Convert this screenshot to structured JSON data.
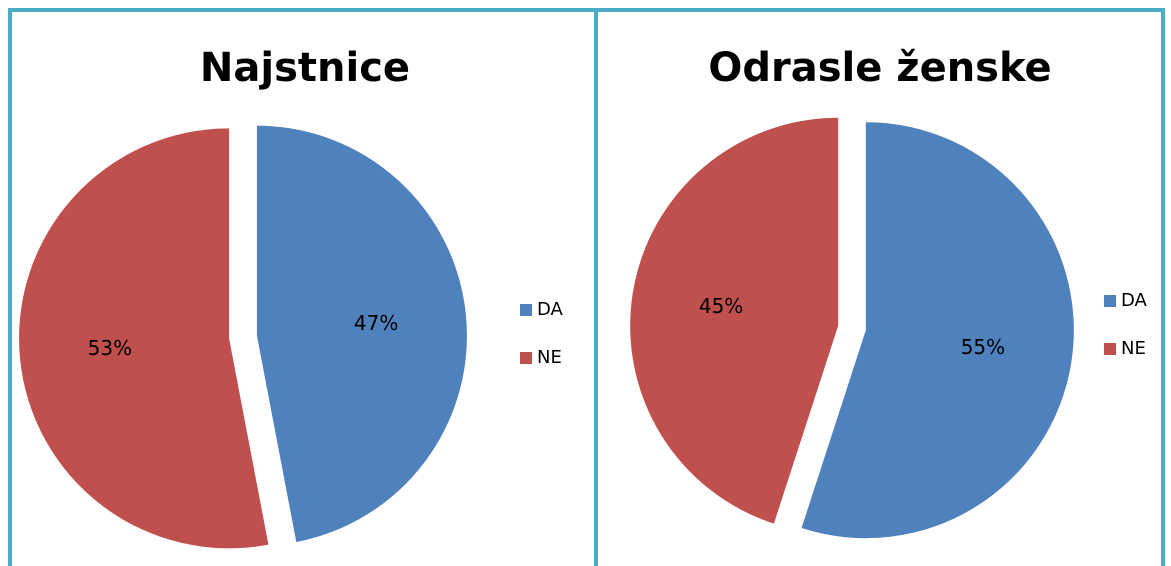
{
  "chart_data": [
    {
      "type": "pie",
      "title": "Najstnice",
      "categories": [
        "DA",
        "NE"
      ],
      "values": [
        47,
        53
      ],
      "value_labels": [
        "47%",
        "53%"
      ],
      "colors": [
        "#4f81bd",
        "#c0504d"
      ],
      "legend": "right"
    },
    {
      "type": "pie",
      "title": "Odrasle ženske",
      "categories": [
        "DA",
        "NE"
      ],
      "values": [
        55,
        45
      ],
      "value_labels": [
        "55%",
        "45%"
      ],
      "colors": [
        "#4f81bd",
        "#c0504d"
      ],
      "legend": "right"
    }
  ]
}
